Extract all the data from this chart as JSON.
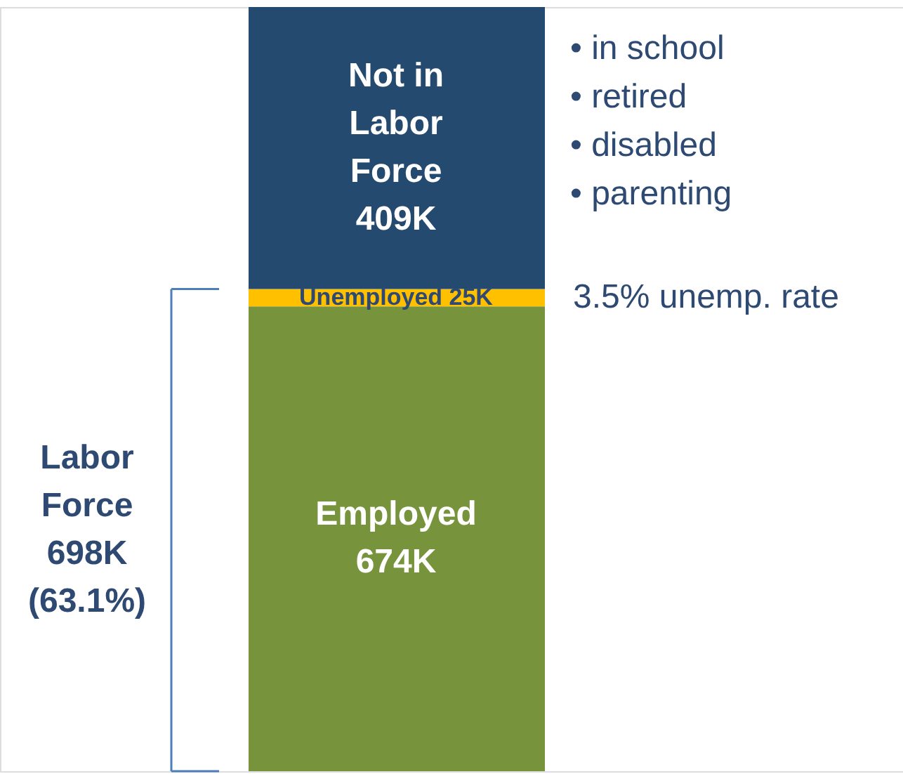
{
  "chart_data": {
    "type": "bar",
    "stacked": true,
    "categories": [
      null
    ],
    "series": [
      {
        "name": "Employed",
        "color": "#77933c",
        "values": [
          674
        ],
        "value_labels": [
          "674K"
        ]
      },
      {
        "name": "Unemployed",
        "color": "#ffc000",
        "values": [
          25
        ],
        "value_labels": [
          "25K"
        ]
      },
      {
        "name": "Not in\nLabor\nForce",
        "color": "#254a6f",
        "values": [
          409
        ],
        "value_labels": [
          "409K"
        ]
      }
    ],
    "annotations": [
      "• in school",
      "• retired",
      "• disabled",
      "• parenting",
      "3.5% unemp. rate",
      "Labor\nForce\n698K\n(63.1%)"
    ]
  }
}
